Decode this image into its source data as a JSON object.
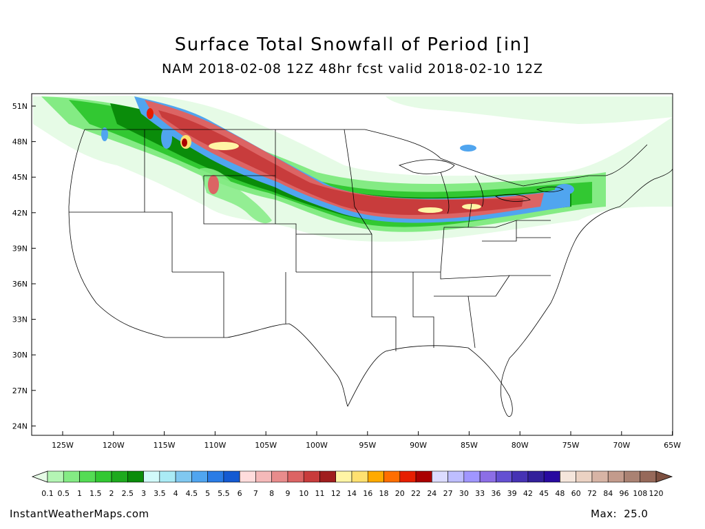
{
  "title": "Surface Total Snowfall of Period [in]",
  "subtitle": "NAM 2018-02-08 12Z 48hr fcst valid 2018-02-10 12Z",
  "footer": {
    "site": "InstantWeatherMaps.com",
    "max_label": "Max:",
    "max_value": "25.0"
  },
  "map": {
    "lat_labels": [
      "51N",
      "48N",
      "45N",
      "42N",
      "39N",
      "36N",
      "33N",
      "30N",
      "27N",
      "24N"
    ],
    "lon_labels": [
      "125W",
      "120W",
      "115W",
      "110W",
      "105W",
      "100W",
      "95W",
      "90W",
      "85W",
      "80W",
      "75W",
      "70W",
      "65W"
    ]
  },
  "colorbar": {
    "labels": [
      "0.1",
      "0.5",
      "1",
      "1.5",
      "2",
      "2.5",
      "3",
      "3.5",
      "4",
      "4.5",
      "5",
      "5.5",
      "6",
      "7",
      "8",
      "9",
      "10",
      "11",
      "12",
      "14",
      "16",
      "18",
      "20",
      "22",
      "24",
      "27",
      "30",
      "33",
      "36",
      "39",
      "42",
      "45",
      "48",
      "60",
      "72",
      "84",
      "96",
      "108",
      "120"
    ],
    "colors": [
      "#e6fbe6",
      "#b4f5b4",
      "#84eb84",
      "#54dc54",
      "#32c832",
      "#1eaa1e",
      "#0a8c0a",
      "#d2fafa",
      "#aaebf5",
      "#80c8f0",
      "#50a5ef",
      "#2a7ce6",
      "#145ad2",
      "#ffdcdc",
      "#f5b9b9",
      "#e88c8c",
      "#dc6464",
      "#c83c3c",
      "#a01e1e",
      "#fff5a5",
      "#ffe170",
      "#ffaa00",
      "#ff6e00",
      "#e61e00",
      "#aa0000",
      "#dcdcff",
      "#bebeff",
      "#a096ff",
      "#8c6ee6",
      "#6450d2",
      "#4632b4",
      "#32209b",
      "#280aa0",
      "#f5e6dc",
      "#ebd2c3",
      "#d7b4a5",
      "#c39b8c",
      "#aa8273",
      "#96695a",
      "#7d5041"
    ]
  },
  "chart_data": {
    "type": "heatmap",
    "title": "Surface Total Snowfall of Period [in]",
    "subtitle": "NAM 2018-02-08 12Z 48hr fcst valid 2018-02-10 12Z",
    "x_ticks": [
      "125W",
      "120W",
      "115W",
      "110W",
      "105W",
      "100W",
      "95W",
      "90W",
      "85W",
      "80W",
      "75W",
      "70W",
      "65W"
    ],
    "y_ticks": [
      "51N",
      "48N",
      "45N",
      "42N",
      "39N",
      "36N",
      "33N",
      "30N",
      "27N",
      "24N"
    ],
    "max_value": 25.0,
    "levels": [
      0.1,
      0.5,
      1,
      1.5,
      2,
      2.5,
      3,
      3.5,
      4,
      4.5,
      5,
      5.5,
      6,
      7,
      8,
      9,
      10,
      11,
      12,
      14,
      16,
      18,
      20,
      22,
      24,
      27,
      30,
      33,
      36,
      39,
      42,
      45,
      48,
      60,
      72,
      84,
      96,
      108,
      120
    ]
  }
}
